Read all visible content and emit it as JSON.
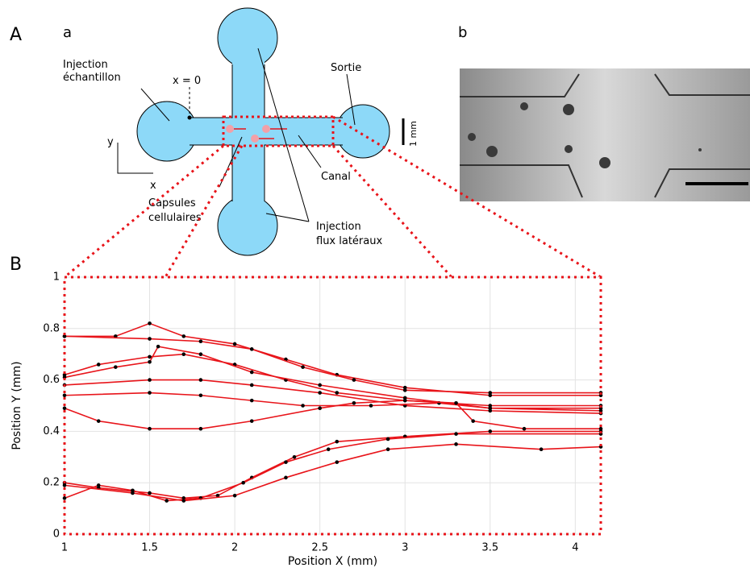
{
  "figure": {
    "panel_A": "A",
    "panel_a": "a",
    "panel_b": "b",
    "panel_B": "B"
  },
  "diagram": {
    "injection_1": "Injection",
    "injection_2": "échantillon",
    "x0": "x = 0",
    "sortie": "Sortie",
    "scale": "1 mm",
    "axis_y": "y",
    "axis_x": "x",
    "canal": "Canal",
    "capsules_1": "Capsules",
    "capsules_2": "cellulaires",
    "lateral_1": "Injection",
    "lateral_2": "flux latéraux"
  },
  "chart_data": {
    "type": "line",
    "xlabel": "Position X (mm)",
    "ylabel": "Position Y (mm)",
    "xlim": [
      1,
      4.15
    ],
    "ylim": [
      0,
      1
    ],
    "xticks": [
      1,
      1.5,
      2,
      2.5,
      3,
      3.5,
      4
    ],
    "yticks": [
      0,
      0.2,
      0.4,
      0.6,
      0.8,
      1
    ],
    "grid": true,
    "line_color": "#e8141a",
    "marker_color": "#000000",
    "series": [
      {
        "x": [
          1,
          1.3,
          1.5,
          1.7,
          2,
          2.3,
          2.6,
          3,
          3.5,
          4.15
        ],
        "values": [
          0.77,
          0.77,
          0.82,
          0.77,
          0.74,
          0.68,
          0.62,
          0.57,
          0.54,
          0.54
        ]
      },
      {
        "x": [
          1,
          1.5,
          1.8,
          2.1,
          2.4,
          2.7,
          3,
          3.5,
          4.15
        ],
        "values": [
          0.77,
          0.76,
          0.75,
          0.72,
          0.65,
          0.6,
          0.56,
          0.55,
          0.55
        ]
      },
      {
        "x": [
          1,
          1.2,
          1.5,
          1.7,
          2,
          2.3,
          2.6,
          3,
          3.5,
          4.15
        ],
        "values": [
          0.62,
          0.66,
          0.69,
          0.7,
          0.66,
          0.6,
          0.55,
          0.52,
          0.5,
          0.5
        ]
      },
      {
        "x": [
          1,
          1.3,
          1.5,
          1.55,
          1.8,
          2.1,
          2.5,
          3,
          3.5,
          4.15
        ],
        "values": [
          0.61,
          0.65,
          0.67,
          0.73,
          0.7,
          0.63,
          0.58,
          0.53,
          0.49,
          0.48
        ]
      },
      {
        "x": [
          1,
          1.5,
          1.8,
          2.1,
          2.5,
          3,
          3.5,
          4.15
        ],
        "values": [
          0.58,
          0.6,
          0.6,
          0.58,
          0.55,
          0.5,
          0.48,
          0.47
        ]
      },
      {
        "x": [
          1,
          1.5,
          1.8,
          2.1,
          2.4,
          2.8,
          3.2,
          3.5,
          4.15
        ],
        "values": [
          0.54,
          0.55,
          0.54,
          0.52,
          0.5,
          0.5,
          0.51,
          0.49,
          0.49
        ]
      },
      {
        "x": [
          1,
          1.2,
          1.5,
          1.8,
          2.1,
          2.5,
          2.7,
          3,
          3.3,
          3.4,
          3.7,
          4.15
        ],
        "values": [
          0.49,
          0.44,
          0.41,
          0.41,
          0.44,
          0.49,
          0.51,
          0.52,
          0.51,
          0.44,
          0.41,
          0.41
        ]
      },
      {
        "x": [
          1,
          1.2,
          1.5,
          1.7,
          1.9,
          2.1,
          2.35,
          2.6,
          3,
          3.5,
          4.15
        ],
        "values": [
          0.2,
          0.18,
          0.16,
          0.14,
          0.15,
          0.22,
          0.3,
          0.36,
          0.38,
          0.4,
          0.4
        ]
      },
      {
        "x": [
          1,
          1.2,
          1.4,
          1.6,
          1.8,
          2.05,
          2.3,
          2.55,
          2.9,
          3.3,
          4.15
        ],
        "values": [
          0.14,
          0.19,
          0.17,
          0.13,
          0.14,
          0.2,
          0.28,
          0.33,
          0.37,
          0.39,
          0.39
        ]
      },
      {
        "x": [
          1,
          1.4,
          1.7,
          2,
          2.3,
          2.6,
          2.9,
          3.3,
          3.8,
          4.15
        ],
        "values": [
          0.19,
          0.16,
          0.13,
          0.15,
          0.22,
          0.28,
          0.33,
          0.35,
          0.33,
          0.34
        ]
      }
    ]
  }
}
